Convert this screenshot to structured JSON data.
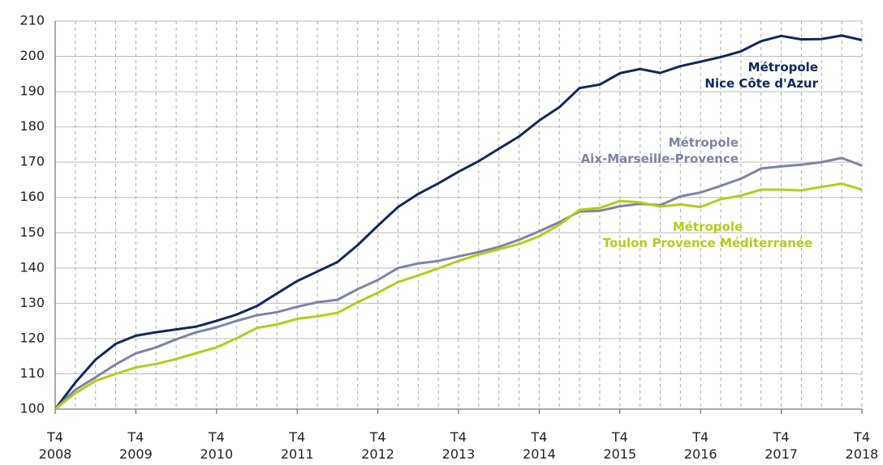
{
  "chart_data": {
    "type": "line",
    "categories": [
      "T4\n2008",
      null,
      null,
      null,
      "T4\n2009",
      null,
      null,
      null,
      "T4\n2010",
      null,
      null,
      null,
      "T4\n2011",
      null,
      null,
      null,
      "T4\n2012",
      null,
      null,
      null,
      "T4\n2013",
      null,
      null,
      null,
      "T4\n2014",
      null,
      null,
      null,
      "T4\n2015",
      null,
      null,
      null,
      "T4\n2016",
      null,
      null,
      null,
      "T4\n2017",
      null,
      null,
      null,
      "T4\n2018"
    ],
    "series": [
      {
        "name": "Métropole\nNice Côte d'Azur",
        "color": "#0d2a5c",
        "values": [
          100,
          107.5,
          114,
          118.5,
          120.8,
          121.8,
          122.6,
          123.4,
          125,
          126.8,
          129.2,
          132.8,
          136.3,
          139,
          141.7,
          146.5,
          152,
          157.3,
          161,
          164,
          167.3,
          170.3,
          173.8,
          177.3,
          181.8,
          185.6,
          191,
          192,
          195.2,
          196.4,
          195.3,
          197.2,
          198.5,
          199.8,
          201.4,
          204.3,
          205.8,
          204.8,
          204.9,
          205.9,
          204.6
        ]
      },
      {
        "name": "Métropole\nAix-Marseille-Provence",
        "color": "#7d84a6",
        "values": [
          100,
          105.5,
          109,
          112.7,
          115.8,
          117.5,
          119.8,
          121.8,
          123.2,
          125,
          126.6,
          127.5,
          129,
          130.3,
          131,
          134,
          136.6,
          140,
          141.3,
          142,
          143.3,
          144.5,
          146,
          148,
          150.4,
          153,
          156,
          156.2,
          157.5,
          158.2,
          157.8,
          160.3,
          161.4,
          163.3,
          165.3,
          168.2,
          168.8,
          169.3,
          170,
          171.2,
          169
        ]
      },
      {
        "name": "Métropole\nToulon Provence Méditerranée",
        "color": "#b5cc18",
        "values": [
          100,
          104.5,
          108,
          110,
          111.8,
          112.8,
          114.2,
          115.9,
          117.5,
          120.1,
          123,
          124,
          125.6,
          126.3,
          127.3,
          130.3,
          133,
          136,
          137.9,
          139.9,
          142,
          143.8,
          145.3,
          146.8,
          149,
          152.3,
          156.5,
          157,
          159,
          158.6,
          157.4,
          158,
          157.3,
          159.5,
          160.5,
          162.2,
          162.2,
          162,
          163,
          163.9,
          162.2
        ]
      }
    ],
    "ylim": [
      100,
      210
    ],
    "yticks": [
      100,
      110,
      120,
      130,
      140,
      150,
      160,
      170,
      180,
      190,
      200,
      210
    ],
    "grid": true
  }
}
